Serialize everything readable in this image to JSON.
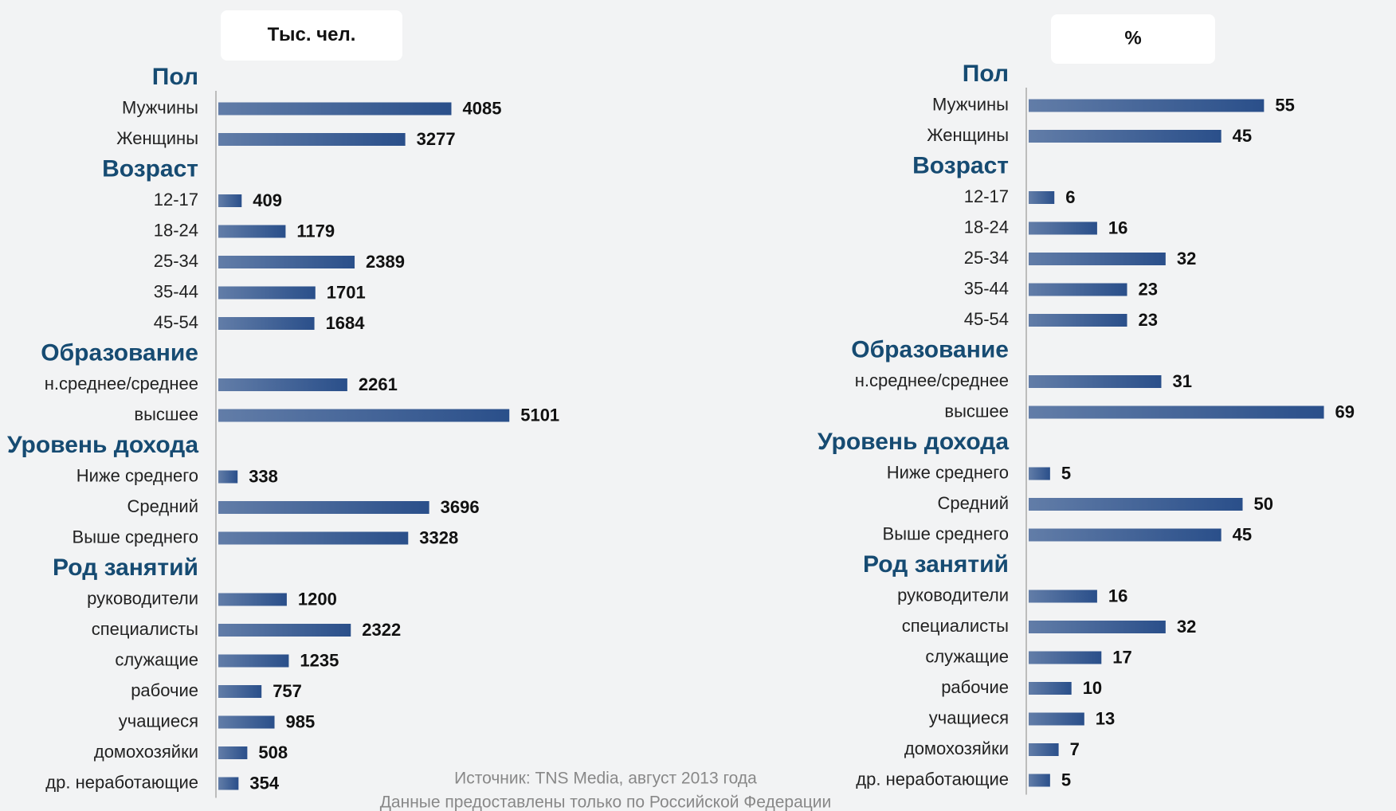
{
  "chart_data": [
    {
      "type": "bar",
      "orientation": "horizontal",
      "unit_label": "Тыс. чел.",
      "color": "#2a4f8a",
      "groups": [
        {
          "name": "Пол",
          "categories": [
            "Мужчины",
            "Женщины"
          ],
          "values": [
            4085,
            3277
          ]
        },
        {
          "name": "Возраст",
          "categories": [
            "12-17",
            "18-24",
            "25-34",
            "35-44",
            "45-54"
          ],
          "values": [
            409,
            1179,
            2389,
            1701,
            1684
          ]
        },
        {
          "name": "Образование",
          "categories": [
            "н.среднее/среднее",
            "высшее"
          ],
          "values": [
            2261,
            5101
          ]
        },
        {
          "name": "Уровень дохода",
          "categories": [
            "Ниже среднего",
            "Средний",
            "Выше среднего"
          ],
          "values": [
            338,
            3696,
            3328
          ]
        },
        {
          "name": "Род занятий",
          "categories": [
            "руководители",
            "специалисты",
            "служащие",
            "рабочие",
            "учащиеся",
            "домохозяйки",
            "др. неработающие"
          ],
          "values": [
            1200,
            2322,
            1235,
            757,
            985,
            508,
            354
          ]
        }
      ]
    },
    {
      "type": "bar",
      "orientation": "horizontal",
      "unit_label": "%",
      "color": "#2a4f8a",
      "groups": [
        {
          "name": "Пол",
          "categories": [
            "Мужчины",
            "Женщины"
          ],
          "values": [
            55,
            45
          ]
        },
        {
          "name": "Возраст",
          "categories": [
            "12-17",
            "18-24",
            "25-34",
            "35-44",
            "45-54"
          ],
          "values": [
            6,
            16,
            32,
            23,
            23
          ]
        },
        {
          "name": "Образование",
          "categories": [
            "н.среднее/среднее",
            "высшее"
          ],
          "values": [
            31,
            69
          ]
        },
        {
          "name": "Уровень дохода",
          "categories": [
            "Ниже среднего",
            "Средний",
            "Выше среднего"
          ],
          "values": [
            5,
            50,
            45
          ]
        },
        {
          "name": "Род занятий",
          "categories": [
            "руководители",
            "специалисты",
            "служащие",
            "рабочие",
            "учащиеся",
            "домохозяйки",
            "др. неработающие"
          ],
          "values": [
            16,
            32,
            17,
            10,
            13,
            7,
            5
          ]
        }
      ]
    }
  ],
  "footer": {
    "source": "Источник: TNS Media, август 2013 года",
    "note": "Данные предоставлены только по Российской Федерации"
  }
}
